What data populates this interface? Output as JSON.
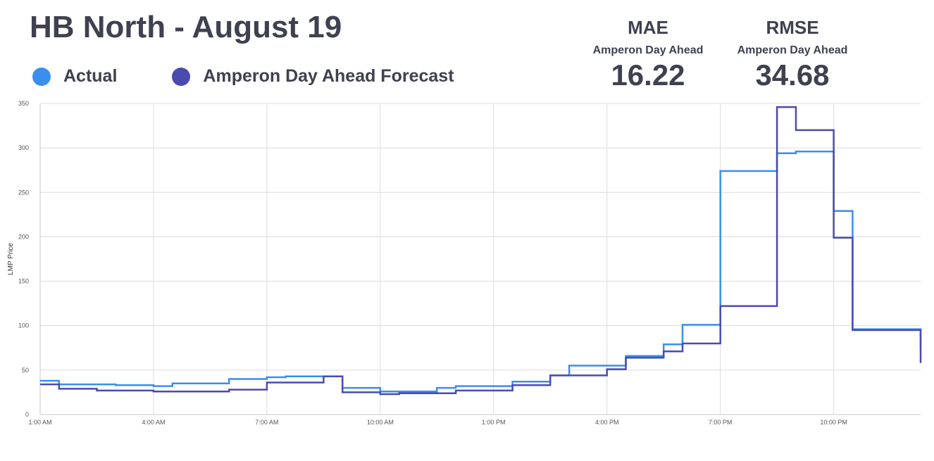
{
  "title": "HB North - August 19",
  "legend": [
    {
      "label": "Actual",
      "color": "#3a8eee"
    },
    {
      "label": "Amperon Day Ahead Forecast",
      "color": "#4a4bae"
    }
  ],
  "metrics": [
    {
      "name": "MAE",
      "subtitle": "Amperon Day Ahead",
      "value": "16.22"
    },
    {
      "name": "RMSE",
      "subtitle": "Amperon Day Ahead",
      "value": "34.68"
    }
  ],
  "chart_data": {
    "type": "line",
    "step": true,
    "ylabel": "LMP Price",
    "xlabel": "",
    "ylim": [
      0,
      350
    ],
    "yticks": [
      0,
      50,
      100,
      150,
      200,
      250,
      300,
      350
    ],
    "xlim": [
      1,
      24.3
    ],
    "xticks": [
      {
        "x": 1,
        "label": "1:00 AM"
      },
      {
        "x": 4,
        "label": "4:00 AM"
      },
      {
        "x": 7,
        "label": "7:00 AM"
      },
      {
        "x": 10,
        "label": "10:00 AM"
      },
      {
        "x": 13,
        "label": "1:00 PM"
      },
      {
        "x": 16,
        "label": "4:00 PM"
      },
      {
        "x": 19,
        "label": "7:00 PM"
      },
      {
        "x": 22,
        "label": "10:00 PM"
      }
    ],
    "grid": true,
    "x_boundaries": [
      1,
      1.5,
      2.5,
      3,
      4,
      4.5,
      5.5,
      6,
      7,
      7.5,
      8.5,
      9,
      10,
      10.5,
      11.5,
      12,
      13,
      13.5,
      14.5,
      15,
      16,
      16.5,
      17.5,
      18,
      19,
      19.5,
      20.5,
      21,
      22,
      22.5,
      23.5,
      24.3
    ],
    "series": [
      {
        "name": "Actual",
        "color": "#3a8eee",
        "values": [
          38,
          34,
          34,
          33,
          32,
          35,
          35,
          40,
          42,
          43,
          43,
          30,
          26,
          26,
          30,
          32,
          32,
          37,
          44,
          55,
          55,
          66,
          79,
          101,
          274,
          274,
          294,
          296,
          229,
          96,
          96,
          75
        ]
      },
      {
        "name": "Amperon Day Ahead Forecast",
        "color": "#4a4bae",
        "values": [
          34,
          29,
          27,
          27,
          26,
          26,
          26,
          28,
          36,
          36,
          43,
          25,
          23,
          24,
          24,
          27,
          27,
          33,
          44,
          44,
          51,
          64,
          71,
          80,
          122,
          122,
          346,
          320,
          199,
          95,
          95,
          58
        ]
      }
    ]
  }
}
